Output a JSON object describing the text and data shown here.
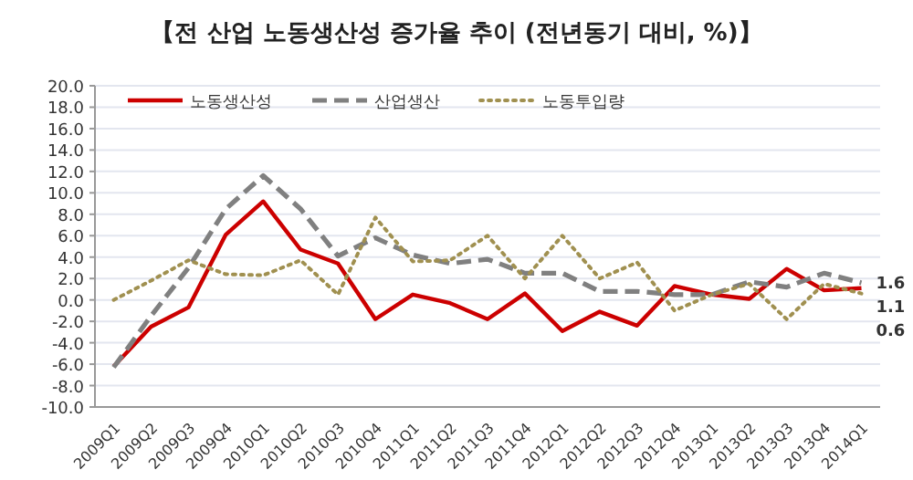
{
  "chart_data": {
    "type": "line",
    "title": "【전 산업 노동생산성 증가율 추이 (전년동기 대비, %)】",
    "categories": [
      "2009Q1",
      "2009Q2",
      "2009Q3",
      "2009Q4",
      "2010Q1",
      "2010Q2",
      "2010Q3",
      "2010Q4",
      "2011Q1",
      "2011Q2",
      "2011Q3",
      "2011Q4",
      "2012Q1",
      "2012Q2",
      "2012Q3",
      "2012Q4",
      "2013Q1",
      "2013Q2",
      "2013Q3",
      "2013Q4",
      "2014Q1"
    ],
    "series": [
      {
        "name": "노동생산성",
        "color": "#cc0000",
        "line_style": "solid",
        "values": [
          -6.2,
          -2.5,
          -0.7,
          6.1,
          9.2,
          4.7,
          3.4,
          -1.8,
          0.5,
          -0.3,
          -1.8,
          0.6,
          -2.9,
          -1.1,
          -2.4,
          1.3,
          0.5,
          0.1,
          2.9,
          0.9,
          1.1
        ]
      },
      {
        "name": "산업생산",
        "color": "#808080",
        "line_style": "dashed",
        "values": [
          -6.3,
          -1.5,
          3.0,
          8.5,
          11.6,
          8.5,
          4.1,
          5.8,
          4.2,
          3.4,
          3.8,
          2.5,
          2.5,
          0.8,
          0.8,
          0.5,
          0.5,
          1.7,
          1.2,
          2.5,
          1.6
        ]
      },
      {
        "name": "노동투입량",
        "color": "#a09050",
        "line_style": "dotted",
        "values": [
          0.0,
          1.8,
          3.7,
          2.4,
          2.3,
          3.7,
          0.5,
          7.7,
          3.6,
          3.7,
          6.0,
          2.0,
          6.0,
          2.0,
          3.5,
          -1.0,
          0.5,
          1.5,
          -1.8,
          1.5,
          0.6
        ]
      }
    ],
    "ylim": [
      -10,
      20
    ],
    "yticks": [
      {
        "value": -10,
        "label": "-10.0"
      },
      {
        "value": -8,
        "label": "-8.0"
      },
      {
        "value": -6,
        "label": "-6.0"
      },
      {
        "value": -4,
        "label": "-4.0"
      },
      {
        "value": -2,
        "label": "-2.0"
      },
      {
        "value": 0,
        "label": "0.0"
      },
      {
        "value": 2,
        "label": "2.0"
      },
      {
        "value": 4,
        "label": "4.0"
      },
      {
        "value": 6,
        "label": "6.0"
      },
      {
        "value": 8,
        "label": "8.0"
      },
      {
        "value": 10,
        "label": "10.0"
      },
      {
        "value": 12,
        "label": "12.0"
      },
      {
        "value": 14,
        "label": "14.0"
      },
      {
        "value": 16,
        "label": "16.0"
      },
      {
        "value": 18,
        "label": "18.0"
      },
      {
        "value": 20,
        "label": "20.0"
      }
    ],
    "grid": "y",
    "legend": "top",
    "marker": "none",
    "annotations": [
      {
        "text": "1.6",
        "x": "2014Q1",
        "y": 1.6
      },
      {
        "text": "1.1",
        "x": "2014Q1",
        "y": 1.1
      },
      {
        "text": "0.6",
        "x": "2014Q1",
        "y": 0.6
      }
    ]
  }
}
